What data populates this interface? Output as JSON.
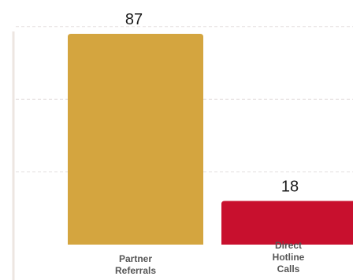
{
  "chart_data": {
    "type": "bar",
    "title": "",
    "xlabel": "",
    "ylabel": "",
    "ylim": [
      0,
      90
    ],
    "grid": true,
    "categories": [
      [
        "Partner",
        "Referrals"
      ],
      [
        "Direct",
        "Hotline",
        "Calls"
      ]
    ],
    "values": [
      87,
      18
    ],
    "value_labels": [
      "87",
      "18"
    ],
    "colors": [
      "#d4a53f",
      "#c8102e"
    ]
  }
}
